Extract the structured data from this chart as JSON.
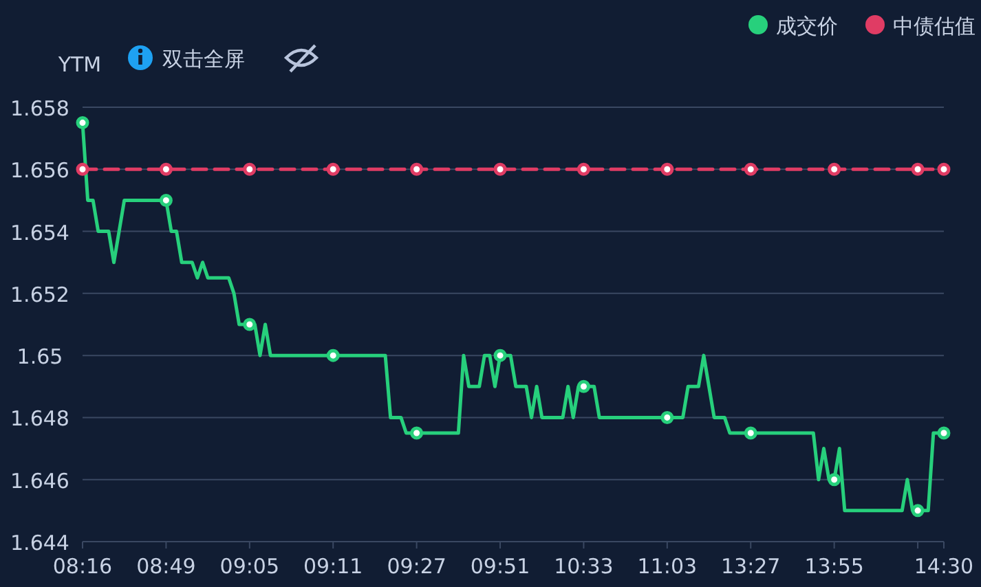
{
  "chart_data": {
    "type": "line",
    "ylabel": "YTM",
    "annotations": [
      "双击全屏"
    ],
    "categories": [
      "08:16",
      null,
      null,
      null,
      null,
      null,
      null,
      null,
      null,
      null,
      null,
      null,
      null,
      null,
      null,
      null,
      "08:49",
      null,
      null,
      null,
      null,
      null,
      null,
      null,
      null,
      null,
      null,
      null,
      null,
      null,
      null,
      null,
      "09:05",
      null,
      null,
      null,
      null,
      null,
      null,
      null,
      null,
      null,
      null,
      null,
      null,
      null,
      null,
      null,
      "09:11",
      null,
      null,
      null,
      null,
      null,
      null,
      null,
      null,
      null,
      null,
      null,
      null,
      null,
      null,
      null,
      "09:27",
      null,
      null,
      null,
      null,
      null,
      null,
      null,
      null,
      null,
      null,
      null,
      null,
      null,
      null,
      null,
      "09:51",
      null,
      null,
      null,
      null,
      null,
      null,
      null,
      null,
      null,
      null,
      null,
      null,
      null,
      null,
      null,
      "10:33",
      null,
      null,
      null,
      null,
      null,
      null,
      null,
      null,
      null,
      null,
      null,
      null,
      null,
      null,
      null,
      "11:03",
      null,
      null,
      null,
      null,
      null,
      null,
      null,
      null,
      null,
      null,
      null,
      null,
      null,
      null,
      null,
      "13:27",
      null,
      null,
      null,
      null,
      null,
      null,
      null,
      null,
      null,
      null,
      null,
      null,
      null,
      null,
      null,
      "13:55",
      null,
      null,
      null,
      null,
      null,
      null,
      null,
      null,
      null,
      null,
      null,
      null,
      null,
      null,
      null,
      null,
      null,
      null,
      null,
      null,
      "14:30"
    ],
    "series": [
      {
        "name": "成交价",
        "color": "#27d07c",
        "values": [
          1.6575,
          1.655,
          1.655,
          1.654,
          1.654,
          1.654,
          1.653,
          1.654,
          1.655,
          1.655,
          1.655,
          1.655,
          1.655,
          1.655,
          1.655,
          1.655,
          1.655,
          1.654,
          1.654,
          1.653,
          1.653,
          1.653,
          1.6525,
          1.653,
          1.6525,
          1.6525,
          1.6525,
          1.6525,
          1.6525,
          1.652,
          1.651,
          1.651,
          1.651,
          1.651,
          1.65,
          1.651,
          1.65,
          1.65,
          1.65,
          1.65,
          1.65,
          1.65,
          1.65,
          1.65,
          1.65,
          1.65,
          1.65,
          1.65,
          1.65,
          1.65,
          1.65,
          1.65,
          1.65,
          1.65,
          1.65,
          1.65,
          1.65,
          1.65,
          1.65,
          1.648,
          1.648,
          1.648,
          1.6475,
          1.6475,
          1.6475,
          1.6475,
          1.6475,
          1.6475,
          1.6475,
          1.6475,
          1.6475,
          1.6475,
          1.6475,
          1.65,
          1.649,
          1.649,
          1.649,
          1.65,
          1.65,
          1.649,
          1.65,
          1.65,
          1.65,
          1.649,
          1.649,
          1.649,
          1.648,
          1.649,
          1.648,
          1.648,
          1.648,
          1.648,
          1.648,
          1.649,
          1.648,
          1.649,
          1.649,
          1.649,
          1.649,
          1.648,
          1.648,
          1.648,
          1.648,
          1.648,
          1.648,
          1.648,
          1.648,
          1.648,
          1.648,
          1.648,
          1.648,
          1.648,
          1.648,
          1.648,
          1.648,
          1.648,
          1.649,
          1.649,
          1.649,
          1.65,
          1.649,
          1.648,
          1.648,
          1.648,
          1.6475,
          1.6475,
          1.6475,
          1.6475,
          1.6475,
          1.6475,
          1.6475,
          1.6475,
          1.6475,
          1.6475,
          1.6475,
          1.6475,
          1.6475,
          1.6475,
          1.6475,
          1.6475,
          1.6475,
          1.646,
          1.647,
          1.646,
          1.646,
          1.647,
          1.645,
          1.645,
          1.645,
          1.645,
          1.645,
          1.645,
          1.645,
          1.645,
          1.645,
          1.645,
          1.645,
          1.645,
          1.646,
          1.645,
          1.645,
          1.645,
          1.645,
          1.6475,
          1.6475,
          1.6475
        ]
      },
      {
        "name": "中债估值",
        "color": "#e03c64",
        "line_style": "dashed",
        "values": [
          1.656,
          1.656,
          1.656,
          1.656,
          1.656,
          1.656,
          1.656,
          1.656,
          1.656,
          1.656,
          1.656,
          1.656,
          1.656,
          1.656,
          1.656,
          1.656,
          1.656,
          1.656,
          1.656,
          1.656,
          1.656,
          1.656,
          1.656,
          1.656,
          1.656,
          1.656,
          1.656,
          1.656,
          1.656,
          1.656,
          1.656,
          1.656,
          1.656,
          1.656,
          1.656,
          1.656,
          1.656,
          1.656,
          1.656,
          1.656,
          1.656,
          1.656,
          1.656,
          1.656,
          1.656,
          1.656,
          1.656,
          1.656,
          1.656,
          1.656,
          1.656,
          1.656,
          1.656,
          1.656,
          1.656,
          1.656,
          1.656,
          1.656,
          1.656,
          1.656,
          1.656,
          1.656,
          1.656,
          1.656,
          1.656,
          1.656,
          1.656,
          1.656,
          1.656,
          1.656,
          1.656,
          1.656,
          1.656,
          1.656,
          1.656,
          1.656,
          1.656,
          1.656,
          1.656,
          1.656,
          1.656,
          1.656,
          1.656,
          1.656,
          1.656,
          1.656,
          1.656,
          1.656,
          1.656,
          1.656,
          1.656,
          1.656,
          1.656,
          1.656,
          1.656,
          1.656,
          1.656,
          1.656,
          1.656,
          1.656,
          1.656,
          1.656,
          1.656,
          1.656,
          1.656,
          1.656,
          1.656,
          1.656,
          1.656,
          1.656,
          1.656,
          1.656,
          1.656,
          1.656,
          1.656,
          1.656,
          1.656,
          1.656,
          1.656,
          1.656,
          1.656,
          1.656,
          1.656,
          1.656,
          1.656,
          1.656,
          1.656,
          1.656,
          1.656,
          1.656,
          1.656,
          1.656,
          1.656,
          1.656,
          1.656,
          1.656,
          1.656,
          1.656,
          1.656,
          1.656,
          1.656,
          1.656,
          1.656,
          1.656,
          1.656,
          1.656,
          1.656,
          1.656,
          1.656,
          1.656,
          1.656,
          1.656,
          1.656,
          1.656,
          1.656,
          1.656,
          1.656,
          1.656,
          1.656,
          1.656,
          1.656,
          1.656,
          1.656,
          1.656,
          1.656,
          1.656
        ]
      }
    ],
    "ylim": [
      1.644,
      1.658
    ],
    "yticks": [
      1.644,
      1.646,
      1.648,
      1.65,
      1.652,
      1.654,
      1.656,
      1.658
    ],
    "grid": "y",
    "legend": "top right"
  }
}
